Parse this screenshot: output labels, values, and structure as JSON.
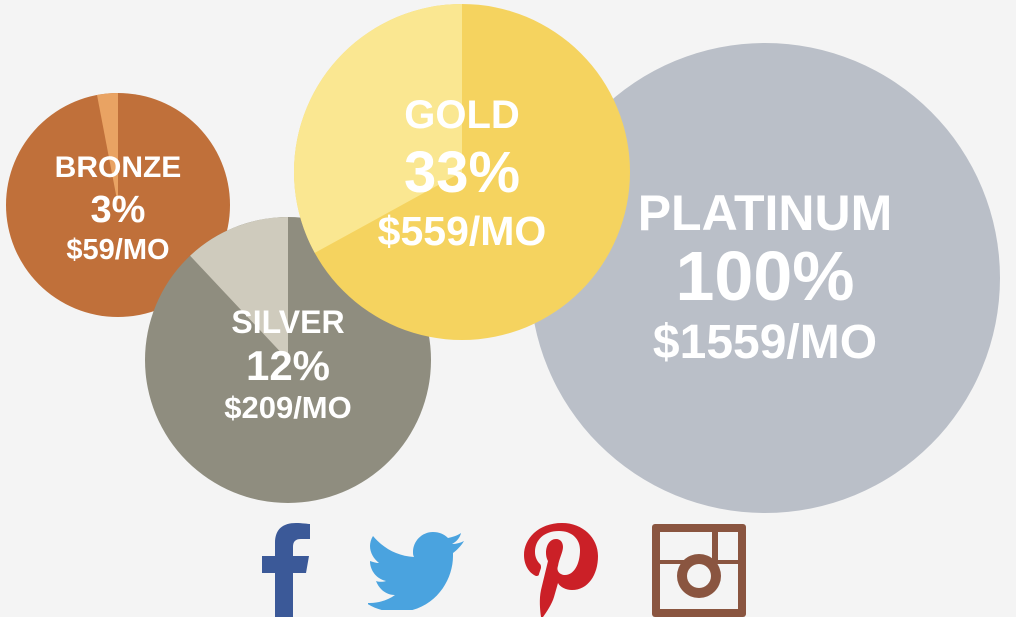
{
  "chart_data": {
    "type": "pie",
    "series": [
      {
        "name": "BRONZE",
        "percent": 3,
        "percent_label": "3%",
        "price": "$59/MO",
        "color": "#c0703a",
        "highlight": "#e9a363"
      },
      {
        "name": "SILVER",
        "percent": 12,
        "percent_label": "12%",
        "price": "$209/MO",
        "color": "#8f8d7f",
        "highlight": "#cfcbbd"
      },
      {
        "name": "GOLD",
        "percent": 33,
        "percent_label": "33%",
        "price": "$559/MO",
        "color": "#f5d35f",
        "highlight": "#fae791"
      },
      {
        "name": "PLATINUM",
        "percent": 100,
        "percent_label": "100%",
        "price": "$1559/MO",
        "color": "#babfc8",
        "highlight": "#babfc8"
      }
    ]
  },
  "social": [
    {
      "name": "facebook-icon",
      "color": "#3b5998"
    },
    {
      "name": "twitter-icon",
      "color": "#4aa3df"
    },
    {
      "name": "pinterest-icon",
      "color": "#cb2027"
    },
    {
      "name": "instagram-icon",
      "color": "#8a5540"
    }
  ]
}
